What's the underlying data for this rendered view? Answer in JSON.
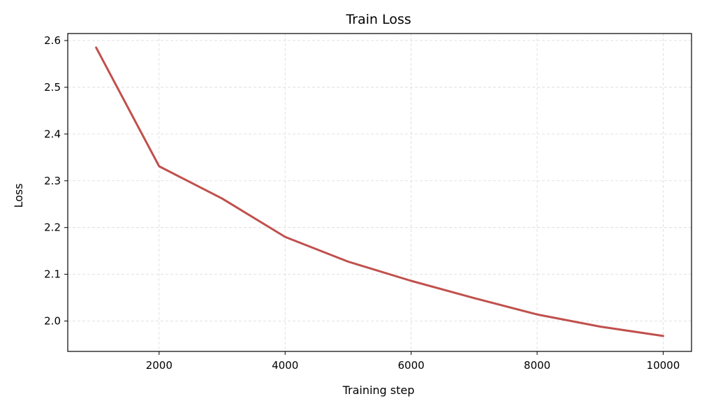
{
  "chart_data": {
    "type": "line",
    "title": "Train Loss",
    "xlabel": "Training step",
    "ylabel": "Loss",
    "xlim": [
      550,
      10450
    ],
    "ylim": [
      1.935,
      2.615
    ],
    "xticks": [
      2000,
      4000,
      6000,
      8000,
      10000
    ],
    "yticks": [
      2.0,
      2.1,
      2.2,
      2.3,
      2.4,
      2.5,
      2.6
    ],
    "grid": true,
    "legend": "none",
    "series": [
      {
        "color": "#c0504d",
        "x": [
          1000,
          2000,
          3000,
          4000,
          5000,
          6000,
          7000,
          8000,
          9000,
          10000
        ],
        "y": [
          2.585,
          2.331,
          2.262,
          2.18,
          2.127,
          2.086,
          2.049,
          2.014,
          1.988,
          1.968
        ]
      }
    ]
  }
}
